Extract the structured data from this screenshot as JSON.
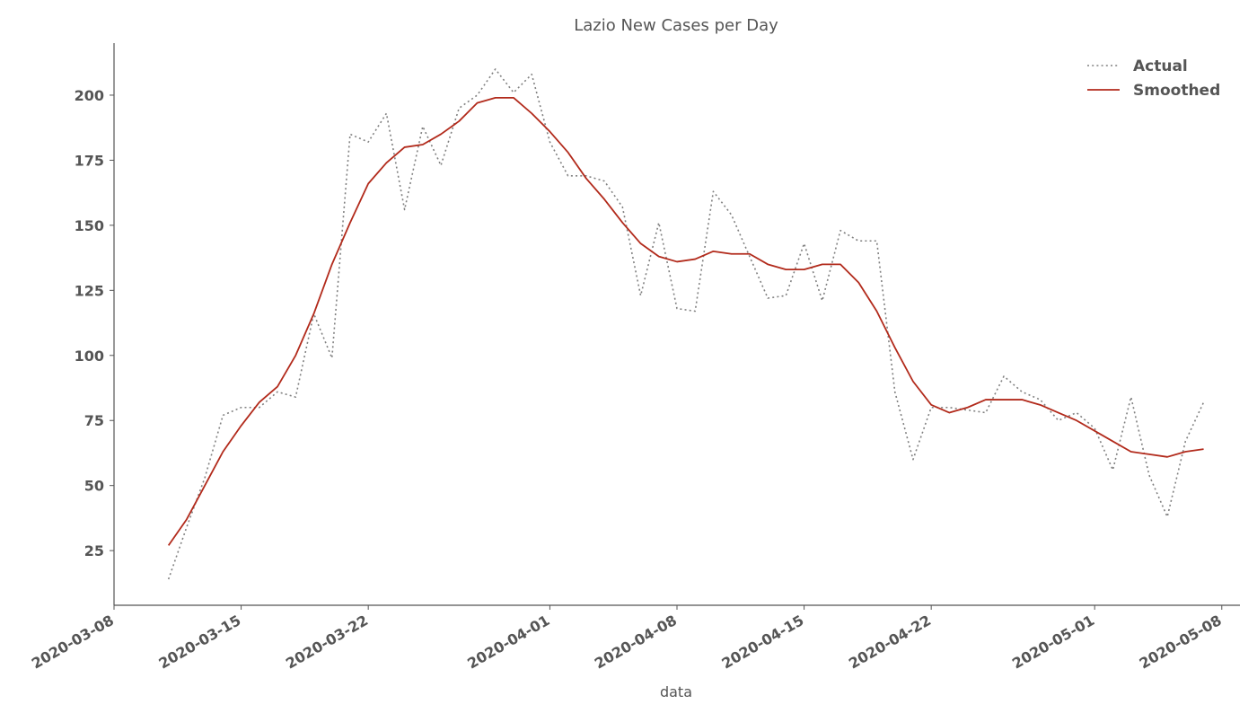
{
  "chart_data": {
    "type": "line",
    "title": "Lazio New Cases per Day",
    "xlabel": "data",
    "ylabel": "",
    "x_type": "date",
    "xlim": [
      "2020-03-08",
      "2020-05-09"
    ],
    "ylim": [
      4,
      220
    ],
    "x_ticks": [
      "2020-03-08",
      "2020-03-15",
      "2020-03-22",
      "2020-04-01",
      "2020-04-08",
      "2020-04-15",
      "2020-04-22",
      "2020-05-01",
      "2020-05-08"
    ],
    "y_ticks": [
      25,
      50,
      75,
      100,
      125,
      150,
      175,
      200
    ],
    "grid": false,
    "legend": {
      "position": "top-right",
      "entries": [
        {
          "name": "Actual",
          "style": "dotted",
          "color": "#808080"
        },
        {
          "name": "Smoothed",
          "style": "solid",
          "color": "#b22a1b"
        }
      ]
    },
    "x": [
      "2020-03-11",
      "2020-03-12",
      "2020-03-13",
      "2020-03-14",
      "2020-03-15",
      "2020-03-16",
      "2020-03-17",
      "2020-03-18",
      "2020-03-19",
      "2020-03-20",
      "2020-03-21",
      "2020-03-22",
      "2020-03-23",
      "2020-03-24",
      "2020-03-25",
      "2020-03-26",
      "2020-03-27",
      "2020-03-28",
      "2020-03-29",
      "2020-03-30",
      "2020-03-31",
      "2020-04-01",
      "2020-04-02",
      "2020-04-03",
      "2020-04-04",
      "2020-04-05",
      "2020-04-06",
      "2020-04-07",
      "2020-04-08",
      "2020-04-09",
      "2020-04-10",
      "2020-04-11",
      "2020-04-12",
      "2020-04-13",
      "2020-04-14",
      "2020-04-15",
      "2020-04-16",
      "2020-04-17",
      "2020-04-18",
      "2020-04-19",
      "2020-04-20",
      "2020-04-21",
      "2020-04-22",
      "2020-04-23",
      "2020-04-24",
      "2020-04-25",
      "2020-04-26",
      "2020-04-27",
      "2020-04-28",
      "2020-04-29",
      "2020-04-30",
      "2020-05-01",
      "2020-05-02",
      "2020-05-03",
      "2020-05-04",
      "2020-05-05",
      "2020-05-06",
      "2020-05-07"
    ],
    "series": [
      {
        "name": "Actual",
        "values": [
          14,
          34,
          53,
          77,
          80,
          80,
          86,
          84,
          116,
          99,
          185,
          182,
          193,
          156,
          188,
          173,
          195,
          200,
          210,
          201,
          208,
          182,
          169,
          169,
          167,
          157,
          123,
          151,
          118,
          117,
          163,
          154,
          138,
          122,
          123,
          143,
          121,
          148,
          144,
          144,
          86,
          60,
          80,
          80,
          79,
          78,
          92,
          86,
          83,
          75,
          78,
          72,
          56,
          84,
          54,
          38,
          67,
          82
        ]
      },
      {
        "name": "Smoothed",
        "values": [
          27,
          37,
          50,
          63,
          73,
          82,
          88,
          100,
          116,
          135,
          151,
          166,
          174,
          180,
          181,
          185,
          190,
          197,
          199,
          199,
          193,
          186,
          178,
          168,
          160,
          151,
          143,
          138,
          136,
          137,
          140,
          139,
          139,
          135,
          133,
          133,
          135,
          135,
          128,
          117,
          103,
          90,
          81,
          78,
          80,
          83,
          83,
          83,
          81,
          78,
          75,
          71,
          67,
          63,
          62,
          61,
          63,
          64
        ]
      }
    ]
  }
}
